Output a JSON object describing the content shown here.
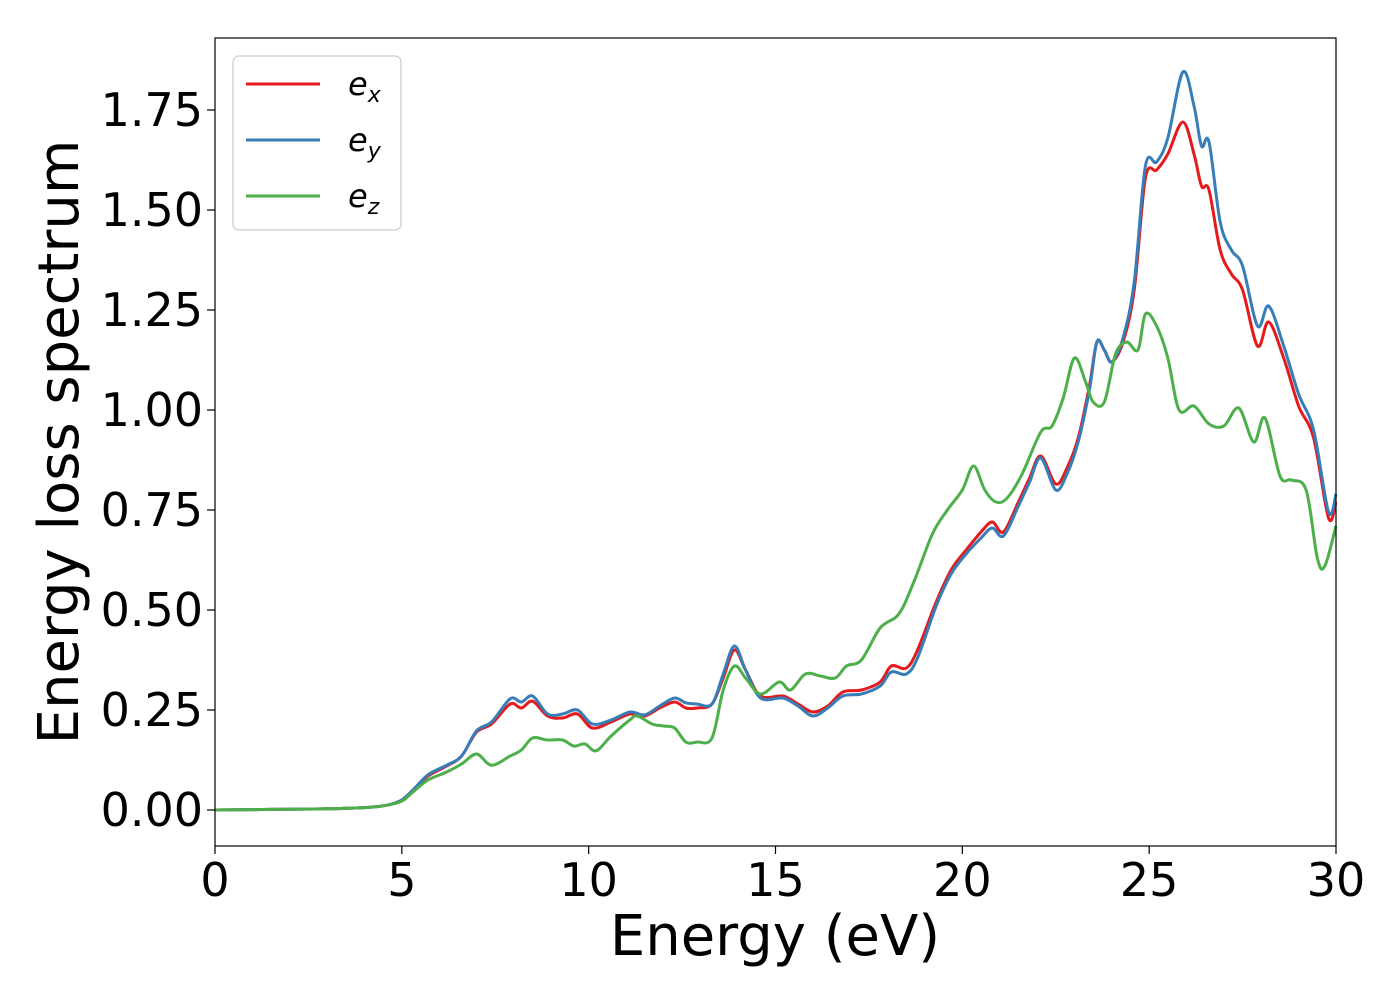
{
  "chart_data": {
    "type": "line",
    "title": "",
    "xlabel": "Energy (eV)",
    "ylabel": "Energy loss spectrum",
    "xlim": [
      0,
      30
    ],
    "ylim": [
      -0.09,
      1.93
    ],
    "xticks": [
      0,
      5,
      10,
      15,
      20,
      25,
      30
    ],
    "xtick_labels": [
      "0",
      "5",
      "10",
      "15",
      "20",
      "25",
      "30"
    ],
    "yticks": [
      0,
      0.25,
      0.5,
      0.75,
      1.0,
      1.25,
      1.5,
      1.75
    ],
    "ytick_labels": [
      "0.00",
      "0.25",
      "0.50",
      "0.75",
      "1.00",
      "1.25",
      "1.50",
      "1.75"
    ],
    "grid": false,
    "legend": "top-left",
    "series": [
      {
        "name": "e",
        "subscript": "x",
        "color": "#e41a1c",
        "points": [
          [
            0,
            0
          ],
          [
            1,
            0.001
          ],
          [
            2,
            0.002
          ],
          [
            3,
            0.003
          ],
          [
            4,
            0.006
          ],
          [
            4.6,
            0.012
          ],
          [
            5,
            0.025
          ],
          [
            5.3,
            0.05
          ],
          [
            5.7,
            0.085
          ],
          [
            6.2,
            0.11
          ],
          [
            6.6,
            0.135
          ],
          [
            7,
            0.195
          ],
          [
            7.4,
            0.215
          ],
          [
            7.9,
            0.265
          ],
          [
            8.2,
            0.255
          ],
          [
            8.5,
            0.272
          ],
          [
            8.9,
            0.235
          ],
          [
            9.3,
            0.23
          ],
          [
            9.7,
            0.24
          ],
          [
            10.1,
            0.205
          ],
          [
            10.6,
            0.22
          ],
          [
            11.1,
            0.24
          ],
          [
            11.5,
            0.235
          ],
          [
            11.9,
            0.255
          ],
          [
            12.3,
            0.27
          ],
          [
            12.6,
            0.255
          ],
          [
            12.9,
            0.255
          ],
          [
            13.3,
            0.265
          ],
          [
            13.6,
            0.33
          ],
          [
            13.9,
            0.4
          ],
          [
            14.2,
            0.35
          ],
          [
            14.6,
            0.285
          ],
          [
            15.2,
            0.285
          ],
          [
            15.6,
            0.265
          ],
          [
            16,
            0.245
          ],
          [
            16.4,
            0.26
          ],
          [
            16.8,
            0.295
          ],
          [
            17.3,
            0.3
          ],
          [
            17.8,
            0.32
          ],
          [
            18.1,
            0.36
          ],
          [
            18.5,
            0.355
          ],
          [
            18.8,
            0.4
          ],
          [
            19.3,
            0.52
          ],
          [
            19.7,
            0.6
          ],
          [
            20.1,
            0.65
          ],
          [
            20.5,
            0.695
          ],
          [
            20.8,
            0.72
          ],
          [
            21.1,
            0.695
          ],
          [
            21.5,
            0.77
          ],
          [
            21.8,
            0.83
          ],
          [
            22.1,
            0.885
          ],
          [
            22.5,
            0.815
          ],
          [
            22.8,
            0.855
          ],
          [
            23.1,
            0.93
          ],
          [
            23.4,
            1.06
          ],
          [
            23.6,
            1.17
          ],
          [
            23.8,
            1.15
          ],
          [
            24,
            1.12
          ],
          [
            24.3,
            1.17
          ],
          [
            24.6,
            1.3
          ],
          [
            24.9,
            1.58
          ],
          [
            25.2,
            1.6
          ],
          [
            25.5,
            1.64
          ],
          [
            25.9,
            1.72
          ],
          [
            26.2,
            1.64
          ],
          [
            26.4,
            1.56
          ],
          [
            26.6,
            1.55
          ],
          [
            26.9,
            1.4
          ],
          [
            27.2,
            1.34
          ],
          [
            27.5,
            1.3
          ],
          [
            27.9,
            1.16
          ],
          [
            28.2,
            1.22
          ],
          [
            28.6,
            1.13
          ],
          [
            29,
            1.01
          ],
          [
            29.4,
            0.93
          ],
          [
            29.8,
            0.73
          ],
          [
            30,
            0.77
          ]
        ]
      },
      {
        "name": "e",
        "subscript": "y",
        "color": "#377eb8",
        "points": [
          [
            0,
            0
          ],
          [
            1,
            0.001
          ],
          [
            2,
            0.002
          ],
          [
            3,
            0.003
          ],
          [
            4,
            0.006
          ],
          [
            4.6,
            0.012
          ],
          [
            5,
            0.025
          ],
          [
            5.3,
            0.05
          ],
          [
            5.7,
            0.088
          ],
          [
            6.2,
            0.112
          ],
          [
            6.6,
            0.135
          ],
          [
            7,
            0.198
          ],
          [
            7.4,
            0.22
          ],
          [
            7.9,
            0.278
          ],
          [
            8.2,
            0.27
          ],
          [
            8.5,
            0.285
          ],
          [
            8.9,
            0.24
          ],
          [
            9.3,
            0.24
          ],
          [
            9.7,
            0.25
          ],
          [
            10.1,
            0.215
          ],
          [
            10.6,
            0.225
          ],
          [
            11.1,
            0.245
          ],
          [
            11.5,
            0.238
          ],
          [
            11.9,
            0.26
          ],
          [
            12.3,
            0.28
          ],
          [
            12.6,
            0.268
          ],
          [
            12.9,
            0.265
          ],
          [
            13.3,
            0.265
          ],
          [
            13.6,
            0.34
          ],
          [
            13.9,
            0.41
          ],
          [
            14.2,
            0.35
          ],
          [
            14.6,
            0.28
          ],
          [
            15.2,
            0.28
          ],
          [
            15.6,
            0.26
          ],
          [
            16,
            0.235
          ],
          [
            16.4,
            0.255
          ],
          [
            16.8,
            0.285
          ],
          [
            17.3,
            0.29
          ],
          [
            17.8,
            0.31
          ],
          [
            18.1,
            0.345
          ],
          [
            18.5,
            0.34
          ],
          [
            18.8,
            0.38
          ],
          [
            19.3,
            0.51
          ],
          [
            19.7,
            0.59
          ],
          [
            20.1,
            0.64
          ],
          [
            20.5,
            0.68
          ],
          [
            20.8,
            0.705
          ],
          [
            21.1,
            0.685
          ],
          [
            21.5,
            0.76
          ],
          [
            21.8,
            0.82
          ],
          [
            22.1,
            0.88
          ],
          [
            22.5,
            0.8
          ],
          [
            22.8,
            0.84
          ],
          [
            23.1,
            0.92
          ],
          [
            23.4,
            1.05
          ],
          [
            23.6,
            1.17
          ],
          [
            23.8,
            1.15
          ],
          [
            24,
            1.12
          ],
          [
            24.3,
            1.18
          ],
          [
            24.6,
            1.32
          ],
          [
            24.9,
            1.61
          ],
          [
            25.2,
            1.62
          ],
          [
            25.5,
            1.68
          ],
          [
            25.9,
            1.845
          ],
          [
            26.2,
            1.76
          ],
          [
            26.4,
            1.66
          ],
          [
            26.6,
            1.67
          ],
          [
            26.9,
            1.47
          ],
          [
            27.2,
            1.4
          ],
          [
            27.5,
            1.36
          ],
          [
            27.9,
            1.21
          ],
          [
            28.2,
            1.26
          ],
          [
            28.6,
            1.16
          ],
          [
            29,
            1.04
          ],
          [
            29.4,
            0.95
          ],
          [
            29.8,
            0.745
          ],
          [
            30,
            0.79
          ]
        ]
      },
      {
        "name": "e",
        "subscript": "z",
        "color": "#4daf4a",
        "points": [
          [
            0,
            0
          ],
          [
            1,
            0.001
          ],
          [
            2,
            0.002
          ],
          [
            3,
            0.003
          ],
          [
            4,
            0.006
          ],
          [
            4.6,
            0.012
          ],
          [
            5,
            0.022
          ],
          [
            5.3,
            0.045
          ],
          [
            5.7,
            0.075
          ],
          [
            6.2,
            0.095
          ],
          [
            6.6,
            0.115
          ],
          [
            7,
            0.14
          ],
          [
            7.4,
            0.112
          ],
          [
            7.9,
            0.135
          ],
          [
            8.2,
            0.15
          ],
          [
            8.5,
            0.18
          ],
          [
            8.9,
            0.175
          ],
          [
            9.3,
            0.175
          ],
          [
            9.6,
            0.16
          ],
          [
            9.9,
            0.165
          ],
          [
            10.2,
            0.148
          ],
          [
            10.6,
            0.185
          ],
          [
            11.1,
            0.225
          ],
          [
            11.3,
            0.235
          ],
          [
            11.7,
            0.215
          ],
          [
            12,
            0.21
          ],
          [
            12.3,
            0.205
          ],
          [
            12.6,
            0.17
          ],
          [
            12.9,
            0.17
          ],
          [
            13.3,
            0.18
          ],
          [
            13.6,
            0.3
          ],
          [
            13.9,
            0.36
          ],
          [
            14.2,
            0.33
          ],
          [
            14.6,
            0.29
          ],
          [
            15.1,
            0.32
          ],
          [
            15.4,
            0.3
          ],
          [
            15.8,
            0.34
          ],
          [
            16.2,
            0.335
          ],
          [
            16.6,
            0.33
          ],
          [
            16.9,
            0.36
          ],
          [
            17.3,
            0.375
          ],
          [
            17.8,
            0.455
          ],
          [
            18.3,
            0.49
          ],
          [
            18.7,
            0.57
          ],
          [
            19.2,
            0.69
          ],
          [
            19.6,
            0.75
          ],
          [
            20,
            0.8
          ],
          [
            20.3,
            0.86
          ],
          [
            20.6,
            0.8
          ],
          [
            20.9,
            0.77
          ],
          [
            21.2,
            0.78
          ],
          [
            21.6,
            0.84
          ],
          [
            22.1,
            0.945
          ],
          [
            22.4,
            0.96
          ],
          [
            22.7,
            1.03
          ],
          [
            23,
            1.13
          ],
          [
            23.3,
            1.07
          ],
          [
            23.5,
            1.02
          ],
          [
            23.8,
            1.02
          ],
          [
            24.1,
            1.14
          ],
          [
            24.4,
            1.17
          ],
          [
            24.7,
            1.15
          ],
          [
            24.9,
            1.24
          ],
          [
            25.2,
            1.21
          ],
          [
            25.5,
            1.13
          ],
          [
            25.8,
            1.0
          ],
          [
            26.2,
            1.01
          ],
          [
            26.6,
            0.965
          ],
          [
            27,
            0.96
          ],
          [
            27.4,
            1.005
          ],
          [
            27.8,
            0.92
          ],
          [
            28.1,
            0.98
          ],
          [
            28.5,
            0.835
          ],
          [
            28.8,
            0.825
          ],
          [
            29.2,
            0.8
          ],
          [
            29.5,
            0.63
          ],
          [
            29.7,
            0.61
          ],
          [
            30,
            0.71
          ]
        ]
      }
    ]
  }
}
